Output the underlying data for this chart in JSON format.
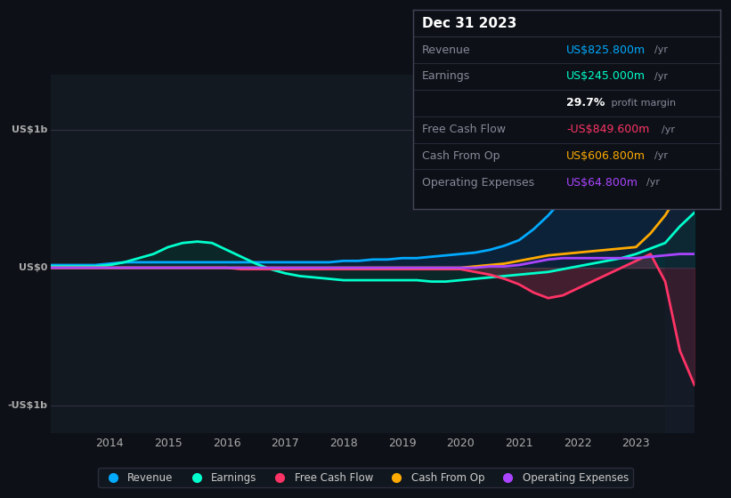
{
  "background_color": "#0d1117",
  "plot_bg_color": "#131921",
  "title": "Dec 31 2023",
  "ylabel_top": "US$1b",
  "ylabel_zero": "US$0",
  "ylabel_bottom": "-US$1b",
  "years": [
    2013,
    2013.25,
    2013.5,
    2013.75,
    2014,
    2014.25,
    2014.5,
    2014.75,
    2015,
    2015.25,
    2015.5,
    2015.75,
    2016,
    2016.25,
    2016.5,
    2016.75,
    2017,
    2017.25,
    2017.5,
    2017.75,
    2018,
    2018.25,
    2018.5,
    2018.75,
    2019,
    2019.25,
    2019.5,
    2019.75,
    2020,
    2020.25,
    2020.5,
    2020.75,
    2021,
    2021.25,
    2021.5,
    2021.75,
    2022,
    2022.25,
    2022.5,
    2022.75,
    2023,
    2023.25,
    2023.5,
    2023.75,
    2024
  ],
  "revenue": [
    0.02,
    0.02,
    0.02,
    0.02,
    0.03,
    0.04,
    0.04,
    0.04,
    0.04,
    0.04,
    0.04,
    0.04,
    0.04,
    0.04,
    0.04,
    0.04,
    0.04,
    0.04,
    0.04,
    0.04,
    0.05,
    0.05,
    0.06,
    0.06,
    0.07,
    0.07,
    0.08,
    0.09,
    0.1,
    0.11,
    0.13,
    0.16,
    0.2,
    0.28,
    0.38,
    0.5,
    0.55,
    0.6,
    0.65,
    0.7,
    0.75,
    0.8,
    0.83,
    1.05,
    1.2
  ],
  "earnings": [
    0.01,
    0.01,
    0.01,
    0.01,
    0.02,
    0.04,
    0.07,
    0.1,
    0.15,
    0.18,
    0.19,
    0.18,
    0.13,
    0.08,
    0.03,
    -0.01,
    -0.04,
    -0.06,
    -0.07,
    -0.08,
    -0.09,
    -0.09,
    -0.09,
    -0.09,
    -0.09,
    -0.09,
    -0.1,
    -0.1,
    -0.09,
    -0.08,
    -0.07,
    -0.06,
    -0.05,
    -0.04,
    -0.03,
    -0.01,
    0.01,
    0.03,
    0.05,
    0.07,
    0.1,
    0.14,
    0.18,
    0.3,
    0.4
  ],
  "free_cash_flow": [
    0.0,
    0.0,
    0.0,
    0.0,
    0.0,
    0.0,
    0.0,
    0.0,
    0.0,
    0.0,
    0.0,
    0.0,
    0.0,
    -0.01,
    -0.01,
    -0.01,
    -0.01,
    -0.01,
    -0.01,
    -0.01,
    -0.01,
    -0.01,
    -0.01,
    -0.01,
    -0.01,
    -0.01,
    -0.01,
    -0.01,
    -0.01,
    -0.03,
    -0.05,
    -0.08,
    -0.12,
    -0.18,
    -0.22,
    -0.2,
    -0.15,
    -0.1,
    -0.05,
    0.0,
    0.05,
    0.1,
    -0.1,
    -0.6,
    -0.85
  ],
  "cash_from_op": [
    0.0,
    0.0,
    0.0,
    0.0,
    0.0,
    0.0,
    0.0,
    0.0,
    0.0,
    0.0,
    0.0,
    0.0,
    0.0,
    0.0,
    0.0,
    0.0,
    0.0,
    0.0,
    0.0,
    0.0,
    0.0,
    0.0,
    0.0,
    0.0,
    0.0,
    0.0,
    0.0,
    0.0,
    0.0,
    0.01,
    0.02,
    0.03,
    0.05,
    0.07,
    0.09,
    0.1,
    0.11,
    0.12,
    0.13,
    0.14,
    0.15,
    0.25,
    0.38,
    0.55,
    0.65
  ],
  "operating_expenses": [
    0.0,
    0.0,
    0.0,
    0.0,
    0.0,
    0.0,
    0.0,
    0.0,
    0.0,
    0.0,
    0.0,
    0.0,
    0.0,
    0.0,
    0.0,
    0.0,
    0.0,
    0.0,
    0.0,
    0.0,
    0.0,
    0.0,
    0.0,
    0.0,
    0.0,
    0.0,
    0.0,
    0.0,
    0.0,
    0.0,
    0.01,
    0.01,
    0.02,
    0.04,
    0.06,
    0.07,
    0.07,
    0.07,
    0.07,
    0.07,
    0.07,
    0.08,
    0.09,
    0.1,
    0.1
  ],
  "revenue_color": "#00aaff",
  "earnings_color": "#00ffcc",
  "free_cash_flow_color": "#ff3366",
  "cash_from_op_color": "#ffaa00",
  "operating_expenses_color": "#aa44ff",
  "revenue_fill": "#003366",
  "earnings_fill": "#004433",
  "tooltip_bg": "#0d1117",
  "tooltip_border": "#333344",
  "xticks": [
    2014,
    2015,
    2016,
    2017,
    2018,
    2019,
    2020,
    2021,
    2022,
    2023
  ],
  "ylim": [
    -1.2,
    1.4
  ],
  "yticks": [
    -1.0,
    0.0,
    1.0
  ],
  "legend_items": [
    "Revenue",
    "Earnings",
    "Free Cash Flow",
    "Cash From Op",
    "Operating Expenses"
  ],
  "legend_colors": [
    "#00aaff",
    "#00ffcc",
    "#ff3366",
    "#ffaa00",
    "#aa44ff"
  ]
}
